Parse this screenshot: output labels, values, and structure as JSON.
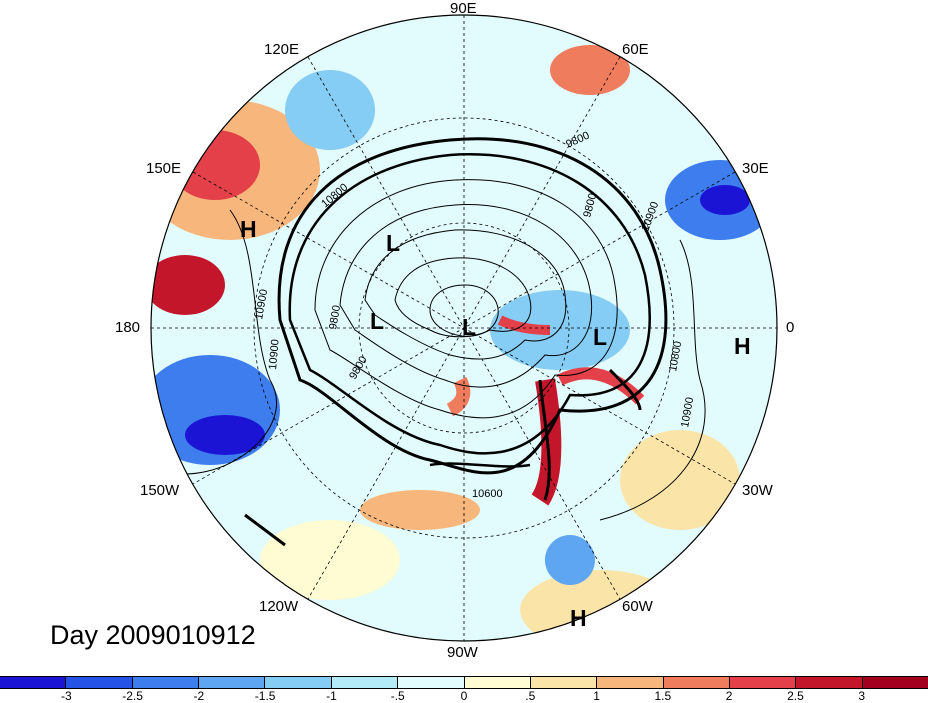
{
  "title": "Day 2009010912",
  "longitude_labels": [
    "90E",
    "60E",
    "30E",
    "0",
    "30W",
    "60W",
    "90W",
    "120W",
    "150W",
    "180",
    "150E",
    "120E"
  ],
  "pressure_centers": [
    {
      "type": "H",
      "name": "high-150E"
    },
    {
      "type": "L",
      "name": "low-asia"
    },
    {
      "type": "L",
      "name": "low-canada"
    },
    {
      "type": "L",
      "name": "low-pole"
    },
    {
      "type": "L",
      "name": "low-europe"
    },
    {
      "type": "H",
      "name": "high-east"
    },
    {
      "type": "H",
      "name": "high-south"
    }
  ],
  "contour_labels": [
    "9800",
    "10900",
    "10800",
    "10900",
    "9800",
    "9800",
    "10900",
    "9800",
    "10800",
    "10900",
    "10600"
  ],
  "colorbar": {
    "ticks": [
      "-3",
      "-2.5",
      "-2",
      "-1.5",
      "-1",
      "-.5",
      "0",
      ".5",
      "1",
      "1.5",
      "2",
      "2.5",
      "3"
    ],
    "colors": [
      "#1b14d4",
      "#2453e6",
      "#3d7ded",
      "#5ea5f2",
      "#85cdf4",
      "#b3ecf8",
      "#e2fbfd",
      "#fffbd2",
      "#fbe4a8",
      "#f7b67b",
      "#ef7c5d",
      "#e3404a",
      "#c4162b",
      "#a2001e"
    ]
  },
  "colors": {
    "land_lines": "#000000",
    "grid": "#000000"
  }
}
